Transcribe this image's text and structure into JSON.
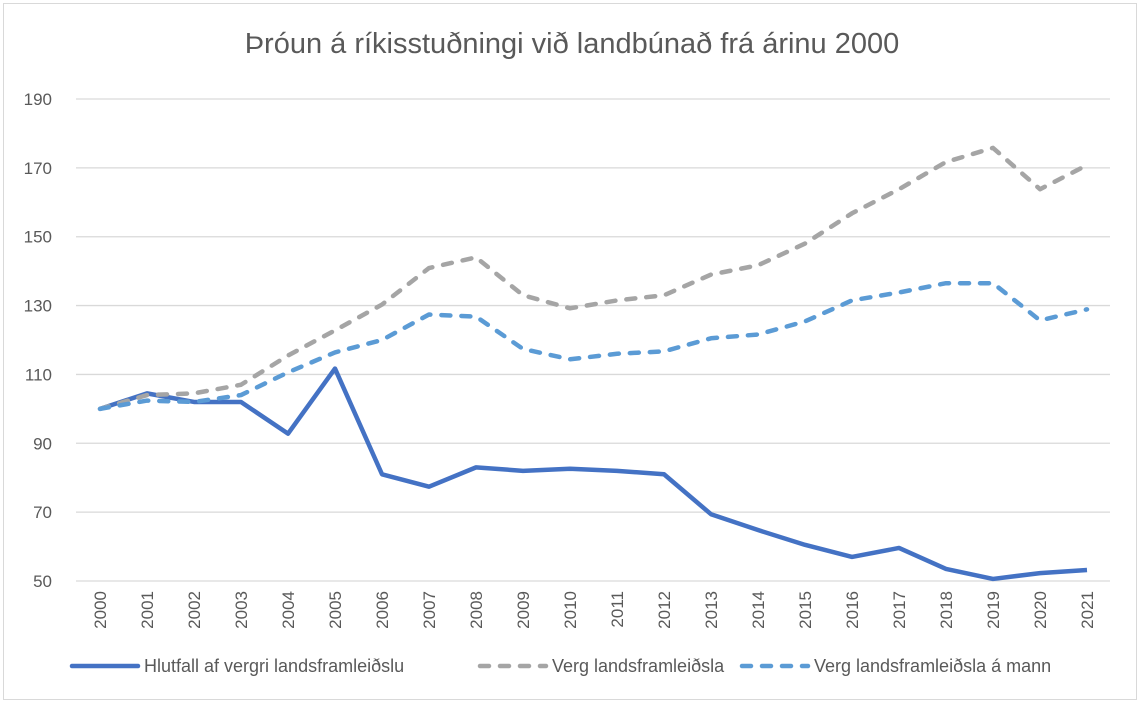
{
  "chart_data": {
    "type": "line",
    "title": "Þróun á ríkisstuðningi við landbúnað frá árinu 2000",
    "xlabel": "",
    "ylabel": "",
    "categories": [
      "2000",
      "2001",
      "2002",
      "2003",
      "2004",
      "2005",
      "2006",
      "2007",
      "2008",
      "2009",
      "2010",
      "2011",
      "2012",
      "2013",
      "2014",
      "2015",
      "2016",
      "2017",
      "2018",
      "2019",
      "2020",
      "2021"
    ],
    "ylim": [
      50,
      190
    ],
    "yticks": [
      50,
      70,
      90,
      110,
      130,
      150,
      170,
      190
    ],
    "grid": true,
    "legend_position": "bottom",
    "series": [
      {
        "name": "Hlutfall af vergri landsframleiðslu",
        "color": "#4472C4",
        "style": "solid",
        "values": [
          100,
          104.5,
          102,
          102,
          92.8,
          111.7,
          81,
          77.4,
          83,
          82,
          82.6,
          82,
          81,
          69.4,
          64.8,
          60.5,
          57,
          59.6,
          53.5,
          50.6,
          52.3,
          53.2
        ]
      },
      {
        "name": "Verg landsframleiðsla",
        "color": "#A5A5A5",
        "style": "dashed",
        "values": [
          100,
          104,
          104.5,
          107,
          115.5,
          122.8,
          130.3,
          140.9,
          144,
          133,
          129.2,
          131.5,
          133,
          139,
          141.7,
          148,
          156.8,
          163.8,
          171.7,
          175.8,
          163.8,
          170.8
        ]
      },
      {
        "name": "Verg landsframleiðsla á mann",
        "color": "#5B9BD5",
        "style": "dashed",
        "values": [
          100,
          102.4,
          102,
          104,
          110.6,
          116.4,
          120,
          127.4,
          126.8,
          117.4,
          114.4,
          116,
          116.7,
          120.5,
          121.6,
          125.4,
          131.5,
          133.8,
          136.5,
          136.5,
          125.7,
          128.9
        ]
      }
    ]
  }
}
